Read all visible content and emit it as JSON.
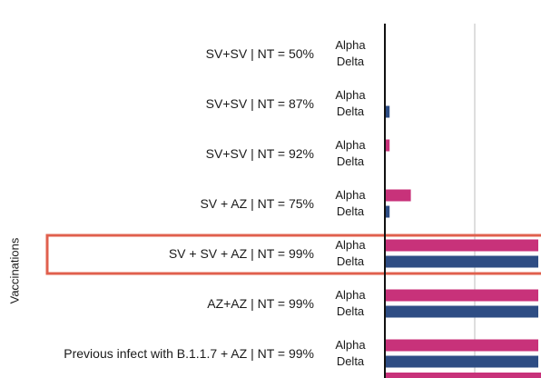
{
  "chart_data": {
    "type": "bar",
    "orientation": "horizontal",
    "ylabel": "Vaccinations",
    "colors": {
      "Alpha": "#c8327a",
      "Delta": "#2e4d84",
      "highlight": "#e0604e"
    },
    "categories": [
      "SV+SV | NT =  50%",
      "SV+SV | NT =  87%",
      "SV+SV | NT =  92%",
      "SV + AZ | NT =  75%",
      "SV + SV + AZ | NT =  99%",
      "AZ+AZ | NT =  99%",
      "Previous infect with B.1.1.7 + AZ | NT =  99%"
    ],
    "highlighted_category": "SV + SV + AZ | NT =  99%",
    "series": [
      {
        "name": "Alpha",
        "values": [
          0,
          0,
          4,
          22,
          130,
          130,
          130
        ]
      },
      {
        "name": "Delta",
        "values": [
          0,
          4,
          0,
          4,
          130,
          130,
          130
        ]
      }
    ]
  }
}
